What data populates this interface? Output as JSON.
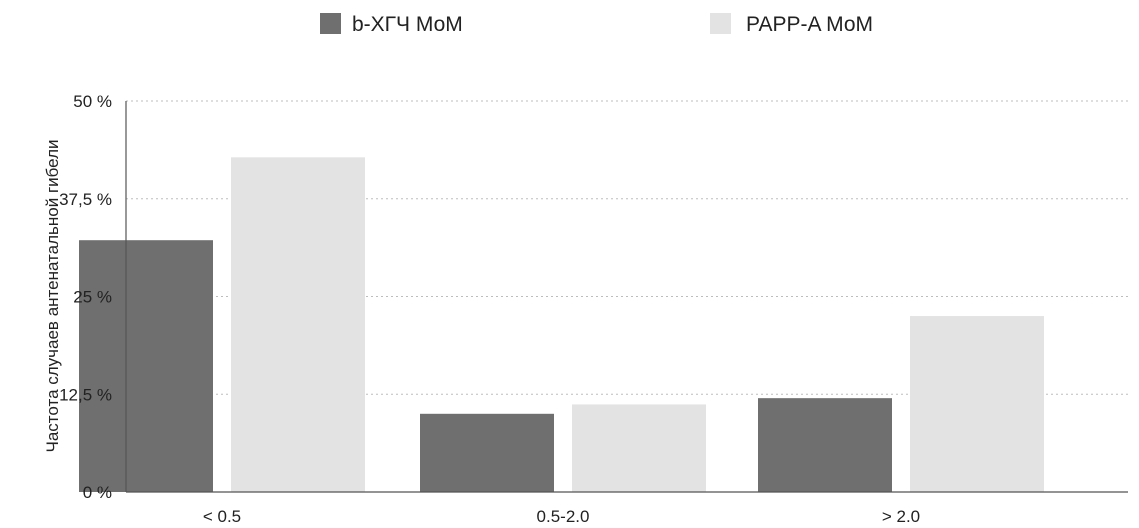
{
  "chart_data": {
    "type": "bar",
    "categories": [
      "< 0.5",
      "0.5-2.0",
      "> 2.0"
    ],
    "series": [
      {
        "name": "b-ХГЧ МоМ",
        "values": [
          32.2,
          10.0,
          12.0
        ],
        "color": "#6f6f6f"
      },
      {
        "name": "PAPP-A МоМ",
        "values": [
          42.8,
          11.2,
          22.5
        ],
        "color": "#e3e3e3"
      }
    ],
    "ylabel": "Частота случаев антенатальной гибели",
    "xlabel": "",
    "ylim": [
      0,
      50
    ],
    "yticks": [
      0,
      12.5,
      25,
      37.5,
      50
    ],
    "ytick_labels": [
      "0 %",
      "12,5 %",
      "25 %",
      "37,5 %",
      "50 %"
    ],
    "grid": true,
    "legend_position": "top"
  }
}
